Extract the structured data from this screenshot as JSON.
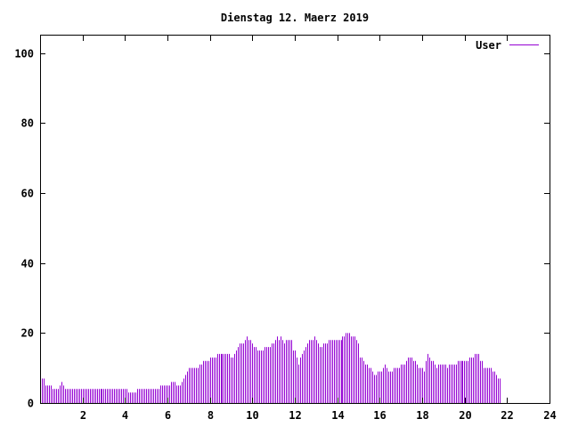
{
  "chart_data": {
    "type": "bar",
    "title": "Dienstag 12. Maerz 2019",
    "xlabel": "",
    "ylabel": "",
    "xlim": [
      0,
      24
    ],
    "ylim": [
      0,
      105
    ],
    "xticks": [
      2,
      4,
      6,
      8,
      10,
      12,
      14,
      16,
      18,
      20,
      22,
      24
    ],
    "yticks": [
      0,
      20,
      40,
      60,
      80,
      100
    ],
    "grid": false,
    "legend_position": "top-right",
    "series": [
      {
        "name": "User",
        "color": "#9400d3",
        "x_start": 0,
        "x_step": 0.0833,
        "values": [
          8,
          7,
          7,
          5,
          5,
          5,
          5,
          4,
          4,
          4,
          4,
          5,
          6,
          5,
          4,
          4,
          4,
          4,
          4,
          4,
          4,
          4,
          4,
          4,
          4,
          4,
          4,
          4,
          4,
          4,
          4,
          4,
          4,
          4,
          4,
          4,
          4,
          4,
          4,
          4,
          4,
          4,
          4,
          4,
          4,
          4,
          4,
          4,
          4,
          4,
          3,
          3,
          3,
          3,
          3,
          4,
          4,
          4,
          4,
          4,
          4,
          4,
          4,
          4,
          4,
          4,
          4,
          4,
          5,
          5,
          5,
          5,
          5,
          5,
          6,
          6,
          6,
          5,
          5,
          5,
          6,
          7,
          8,
          9,
          10,
          10,
          10,
          10,
          10,
          10,
          11,
          11,
          12,
          12,
          12,
          12,
          13,
          13,
          13,
          13,
          14,
          14,
          14,
          14,
          14,
          14,
          14,
          14,
          13,
          13,
          14,
          15,
          16,
          17,
          17,
          17,
          18,
          19,
          18,
          18,
          17,
          16,
          16,
          15,
          15,
          15,
          15,
          16,
          16,
          16,
          16,
          17,
          17,
          18,
          19,
          18,
          19,
          18,
          17,
          18,
          18,
          18,
          18,
          15,
          15,
          13,
          11,
          13,
          14,
          15,
          16,
          17,
          18,
          18,
          18,
          19,
          18,
          17,
          16,
          16,
          17,
          17,
          17,
          18,
          18,
          18,
          18,
          18,
          18,
          18,
          18,
          19,
          19,
          20,
          20,
          20,
          19,
          19,
          19,
          18,
          17,
          13,
          13,
          12,
          11,
          11,
          10,
          10,
          9,
          8,
          8,
          9,
          9,
          9,
          10,
          11,
          10,
          9,
          9,
          9,
          10,
          10,
          10,
          10,
          11,
          11,
          11,
          12,
          13,
          13,
          13,
          12,
          12,
          11,
          10,
          10,
          10,
          9,
          12,
          14,
          13,
          12,
          12,
          11,
          10,
          11,
          11,
          11,
          11,
          11,
          10,
          11,
          11,
          11,
          11,
          11,
          12,
          12,
          12,
          12,
          12,
          12,
          12,
          13,
          13,
          13,
          14,
          14,
          14,
          12,
          12,
          10,
          10,
          10,
          10,
          10,
          9,
          9,
          8,
          7,
          7
        ]
      }
    ]
  }
}
